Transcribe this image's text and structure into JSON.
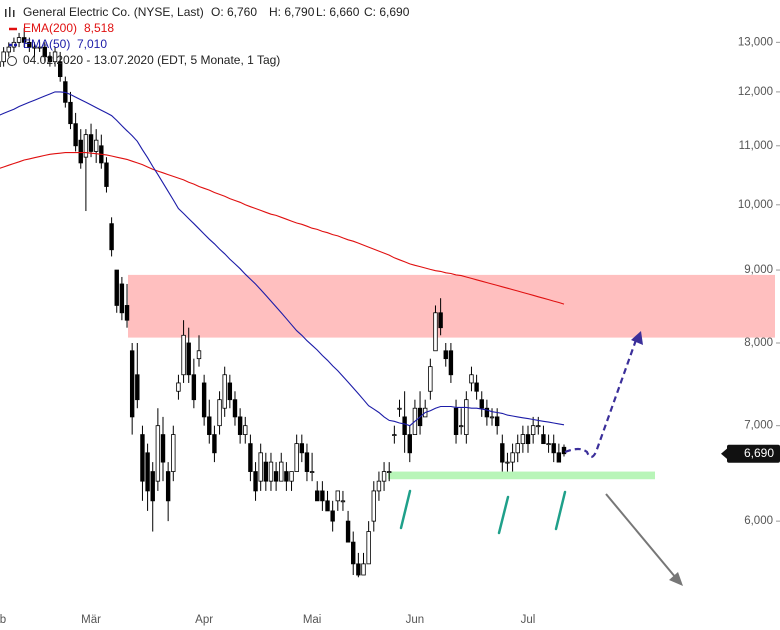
{
  "chart_data": {
    "type": "candlestick",
    "title": "General Electric Co. (NYSE, Last)",
    "quote": [
      "O: 6,760",
      "H: 6,790",
      "L: 6,660",
      "C: 6,690"
    ],
    "subtitle": "04.02.2020 - 13.07.2020 (EDT, 5 Monate, 1 Tag)",
    "log": true,
    "ylim": [
      5.24,
      13.92
    ],
    "yticks": [
      {
        "value": 6,
        "label": "6,000"
      },
      {
        "value": 7,
        "label": "7,000"
      },
      {
        "value": 8,
        "label": "8,000"
      },
      {
        "value": 9,
        "label": "9,000"
      },
      {
        "value": 10,
        "label": "10,000"
      },
      {
        "value": 11,
        "label": "11,000"
      },
      {
        "value": 12,
        "label": "12,000"
      },
      {
        "value": 13,
        "label": "13,000"
      }
    ],
    "up_color": "#ffffff",
    "down_color": "#000000",
    "categories": [
      "b",
      null,
      null,
      null,
      null,
      null,
      null,
      null,
      null,
      null,
      null,
      null,
      null,
      null,
      null,
      null,
      null,
      null,
      "Mär",
      null,
      null,
      null,
      null,
      null,
      null,
      null,
      null,
      null,
      null,
      null,
      null,
      null,
      null,
      null,
      null,
      null,
      null,
      null,
      null,
      null,
      "Apr",
      null,
      null,
      null,
      null,
      null,
      null,
      null,
      null,
      null,
      null,
      null,
      null,
      null,
      null,
      null,
      null,
      null,
      null,
      null,
      null,
      "Mai",
      null,
      null,
      null,
      null,
      null,
      null,
      null,
      null,
      null,
      null,
      null,
      null,
      null,
      null,
      null,
      null,
      null,
      null,
      null,
      "Jun",
      null,
      null,
      null,
      null,
      null,
      null,
      null,
      null,
      null,
      null,
      null,
      null,
      null,
      null,
      null,
      null,
      null,
      null,
      null,
      null,
      null,
      "Jul",
      null,
      null,
      null,
      null,
      null,
      null,
      null
    ],
    "ohlc": [
      [
        12.5,
        12.7,
        12.4,
        12.6
      ],
      [
        12.6,
        12.9,
        12.5,
        12.8
      ],
      [
        12.8,
        13.0,
        12.7,
        12.9
      ],
      [
        12.9,
        13.1,
        12.8,
        13.0
      ],
      [
        13.0,
        13.2,
        12.9,
        13.1
      ],
      [
        13.1,
        13.3,
        12.9,
        13.0
      ],
      [
        13.0,
        13.1,
        12.8,
        12.9
      ],
      [
        12.9,
        13.0,
        12.7,
        12.9
      ],
      [
        12.9,
        13.0,
        12.8,
        12.9
      ],
      [
        12.9,
        13.0,
        12.6,
        12.7
      ],
      [
        12.7,
        12.8,
        12.5,
        12.6
      ],
      [
        12.6,
        12.9,
        12.5,
        12.8
      ],
      [
        12.6,
        12.8,
        12.2,
        12.3
      ],
      [
        12.2,
        12.3,
        11.7,
        11.8
      ],
      [
        11.8,
        12.0,
        11.3,
        11.4
      ],
      [
        11.4,
        11.6,
        10.9,
        11.0
      ],
      [
        11.1,
        11.3,
        10.6,
        10.7
      ],
      [
        10.8,
        11.3,
        9.9,
        11.2
      ],
      [
        11.2,
        11.4,
        10.8,
        10.9
      ],
      [
        10.9,
        11.3,
        10.7,
        11.1
      ],
      [
        11.0,
        11.2,
        10.6,
        10.7
      ],
      [
        10.7,
        10.8,
        10.2,
        10.3
      ],
      [
        9.7,
        9.8,
        9.2,
        9.3
      ],
      [
        9.0,
        9.0,
        8.4,
        8.5
      ],
      [
        8.8,
        8.9,
        8.3,
        8.4
      ],
      [
        8.5,
        8.8,
        8.2,
        8.3
      ],
      [
        7.9,
        8.0,
        6.9,
        7.1
      ],
      [
        7.6,
        8.0,
        7.2,
        7.3
      ],
      [
        6.9,
        7.0,
        6.2,
        6.4
      ],
      [
        6.7,
        6.8,
        6.1,
        6.3
      ],
      [
        6.5,
        6.6,
        5.9,
        6.2
      ],
      [
        6.4,
        7.2,
        6.3,
        7.0
      ],
      [
        6.9,
        7.1,
        6.4,
        6.6
      ],
      [
        6.5,
        6.6,
        6.0,
        6.2
      ],
      [
        6.5,
        7.0,
        6.4,
        6.9
      ],
      [
        7.4,
        7.6,
        7.3,
        7.5
      ],
      [
        7.6,
        8.3,
        7.5,
        8.1
      ],
      [
        8.0,
        8.2,
        7.5,
        7.6
      ],
      [
        7.6,
        7.8,
        7.2,
        7.3
      ],
      [
        7.8,
        8.1,
        7.7,
        7.9
      ],
      [
        7.5,
        7.6,
        7.0,
        7.1
      ],
      [
        7.1,
        7.3,
        6.8,
        6.9
      ],
      [
        6.9,
        7.0,
        6.6,
        6.7
      ],
      [
        7.0,
        7.4,
        6.9,
        7.3
      ],
      [
        7.2,
        7.7,
        7.1,
        7.6
      ],
      [
        7.5,
        7.6,
        7.2,
        7.3
      ],
      [
        7.3,
        7.4,
        7.0,
        7.1
      ],
      [
        7.1,
        7.2,
        6.8,
        6.9
      ],
      [
        6.9,
        7.1,
        6.8,
        7.0
      ],
      [
        6.8,
        6.9,
        6.4,
        6.5
      ],
      [
        6.5,
        6.6,
        6.2,
        6.3
      ],
      [
        6.4,
        6.8,
        6.3,
        6.7
      ],
      [
        6.6,
        6.7,
        6.3,
        6.4
      ],
      [
        6.4,
        6.7,
        6.3,
        6.6
      ],
      [
        6.5,
        6.6,
        6.3,
        6.4
      ],
      [
        6.4,
        6.7,
        6.4,
        6.6
      ],
      [
        6.5,
        6.6,
        6.3,
        6.4
      ],
      [
        6.4,
        6.5,
        6.3,
        6.5
      ],
      [
        6.5,
        6.9,
        6.5,
        6.8
      ],
      [
        6.8,
        6.9,
        6.6,
        6.7
      ],
      [
        6.7,
        6.8,
        6.4,
        6.5
      ],
      [
        6.5,
        6.7,
        6.4,
        6.5
      ],
      [
        6.3,
        6.4,
        6.2,
        6.2
      ],
      [
        6.3,
        6.4,
        6.1,
        6.2
      ],
      [
        6.2,
        6.3,
        6.1,
        6.1
      ],
      [
        6.1,
        6.2,
        5.9,
        6.0
      ],
      [
        6.2,
        6.3,
        6.1,
        6.3
      ],
      [
        6.2,
        6.3,
        6.1,
        6.2
      ],
      [
        6.0,
        6.1,
        5.8,
        5.8
      ],
      [
        5.8,
        5.9,
        5.5,
        5.6
      ],
      [
        5.6,
        5.7,
        5.48,
        5.5
      ],
      [
        5.5,
        5.7,
        5.5,
        5.6
      ],
      [
        5.6,
        6.0,
        5.6,
        5.9
      ],
      [
        6.0,
        6.4,
        5.9,
        6.3
      ],
      [
        6.3,
        6.5,
        6.2,
        6.4
      ],
      [
        6.4,
        6.6,
        6.3,
        6.5
      ],
      [
        6.5,
        6.6,
        6.4,
        6.5
      ],
      [
        6.9,
        7.0,
        6.8,
        6.9
      ],
      [
        7.2,
        7.3,
        7.1,
        7.2
      ],
      [
        7.1,
        7.4,
        6.7,
        6.9
      ],
      [
        6.9,
        7.0,
        6.6,
        6.7
      ],
      [
        6.9,
        7.3,
        6.9,
        7.2
      ],
      [
        7.2,
        7.4,
        6.9,
        7.0
      ],
      [
        7.1,
        7.3,
        7.1,
        7.2
      ],
      [
        7.4,
        7.8,
        7.3,
        7.7
      ],
      [
        7.9,
        8.5,
        7.9,
        8.4
      ],
      [
        8.4,
        8.6,
        8.1,
        8.2
      ],
      [
        7.9,
        8.0,
        7.7,
        7.8
      ],
      [
        7.9,
        8.0,
        7.5,
        7.6
      ],
      [
        7.2,
        7.3,
        6.8,
        6.9
      ],
      [
        7.0,
        7.2,
        6.9,
        7.0
      ],
      [
        6.9,
        7.4,
        6.8,
        7.3
      ],
      [
        7.5,
        7.7,
        7.4,
        7.6
      ],
      [
        7.5,
        7.6,
        7.3,
        7.4
      ],
      [
        7.3,
        7.4,
        7.1,
        7.2
      ],
      [
        7.2,
        7.3,
        7.0,
        7.1
      ],
      [
        7.1,
        7.2,
        7.0,
        7.1
      ],
      [
        7.1,
        7.2,
        6.9,
        7.0
      ],
      [
        6.8,
        6.9,
        6.5,
        6.6
      ],
      [
        6.6,
        6.7,
        6.5,
        6.6
      ],
      [
        6.6,
        6.8,
        6.5,
        6.7
      ],
      [
        6.7,
        6.9,
        6.6,
        6.8
      ],
      [
        6.8,
        7.0,
        6.7,
        6.9
      ],
      [
        6.9,
        7.0,
        6.7,
        6.8
      ],
      [
        6.9,
        7.1,
        6.8,
        7.0
      ],
      [
        7.0,
        7.1,
        6.9,
        7.0
      ],
      [
        6.9,
        7.0,
        6.8,
        6.8
      ],
      [
        6.8,
        6.9,
        6.7,
        6.8
      ],
      [
        6.8,
        6.9,
        6.6,
        6.7
      ],
      [
        6.7,
        6.8,
        6.6,
        6.6
      ],
      [
        6.76,
        6.79,
        6.66,
        6.69
      ]
    ],
    "series": [
      {
        "name": "EMA(200)",
        "last": "8,518",
        "color": "#e01010",
        "dashed": false,
        "values": [
          10.6,
          10.63,
          10.66,
          10.69,
          10.72,
          10.75,
          10.77,
          10.79,
          10.81,
          10.83,
          10.85,
          10.86,
          10.87,
          10.88,
          10.88,
          10.88,
          10.88,
          10.88,
          10.87,
          10.86,
          10.85,
          10.84,
          10.82,
          10.8,
          10.78,
          10.76,
          10.73,
          10.7,
          10.67,
          10.63,
          10.59,
          10.56,
          10.53,
          10.5,
          10.47,
          10.44,
          10.41,
          10.37,
          10.34,
          10.3,
          10.27,
          10.24,
          10.2,
          10.17,
          10.14,
          10.1,
          10.07,
          10.04,
          10.0,
          9.97,
          9.94,
          9.91,
          9.88,
          9.85,
          9.83,
          9.8,
          9.77,
          9.74,
          9.71,
          9.69,
          9.66,
          9.63,
          9.61,
          9.58,
          9.56,
          9.53,
          9.51,
          9.48,
          9.45,
          9.43,
          9.4,
          9.37,
          9.34,
          9.31,
          9.28,
          9.25,
          9.22,
          9.18,
          9.15,
          9.12,
          9.09,
          9.07,
          9.05,
          9.03,
          9.01,
          8.99,
          8.98,
          8.96,
          8.95,
          8.93,
          8.92,
          8.9,
          8.88,
          8.86,
          8.84,
          8.82,
          8.8,
          8.78,
          8.76,
          8.74,
          8.72,
          8.7,
          8.68,
          8.66,
          8.64,
          8.62,
          8.6,
          8.58,
          8.56,
          8.54,
          8.518
        ]
      },
      {
        "name": "EMA(50)",
        "last": "7,010",
        "color": "#1c1ca8",
        "dashed": true,
        "values": [
          11.55,
          11.59,
          11.63,
          11.67,
          11.72,
          11.76,
          11.8,
          11.84,
          11.88,
          11.92,
          11.96,
          12.0,
          12.0,
          11.99,
          11.95,
          11.9,
          11.85,
          11.8,
          11.75,
          11.7,
          11.65,
          11.6,
          11.55,
          11.46,
          11.36,
          11.27,
          11.18,
          11.08,
          10.93,
          10.79,
          10.64,
          10.5,
          10.36,
          10.22,
          10.08,
          9.94,
          9.86,
          9.78,
          9.7,
          9.62,
          9.54,
          9.46,
          9.39,
          9.31,
          9.24,
          9.16,
          9.09,
          9.02,
          8.94,
          8.87,
          8.8,
          8.72,
          8.64,
          8.56,
          8.48,
          8.4,
          8.32,
          8.24,
          8.16,
          8.1,
          8.03,
          7.97,
          7.91,
          7.84,
          7.78,
          7.71,
          7.65,
          7.58,
          7.51,
          7.44,
          7.37,
          7.3,
          7.23,
          7.19,
          7.15,
          7.1,
          7.06,
          7.05,
          7.03,
          7.02,
          7.0,
          7.05,
          7.1,
          7.15,
          7.17,
          7.2,
          7.22,
          7.22,
          7.22,
          7.21,
          7.21,
          7.21,
          7.2,
          7.2,
          7.19,
          7.18,
          7.16,
          7.15,
          7.14,
          7.12,
          7.11,
          7.1,
          7.09,
          7.08,
          7.07,
          7.06,
          7.05,
          7.04,
          7.03,
          7.02,
          7.01
        ]
      }
    ],
    "zones": [
      {
        "ylim": [
          8.07,
          8.93
        ],
        "color": "#ffbfbf"
      },
      {
        "ylim": [
          6.42,
          6.5
        ],
        "color": "#b8f5b8"
      }
    ],
    "price_tag": {
      "value": 6.69,
      "label": "6,690"
    }
  }
}
